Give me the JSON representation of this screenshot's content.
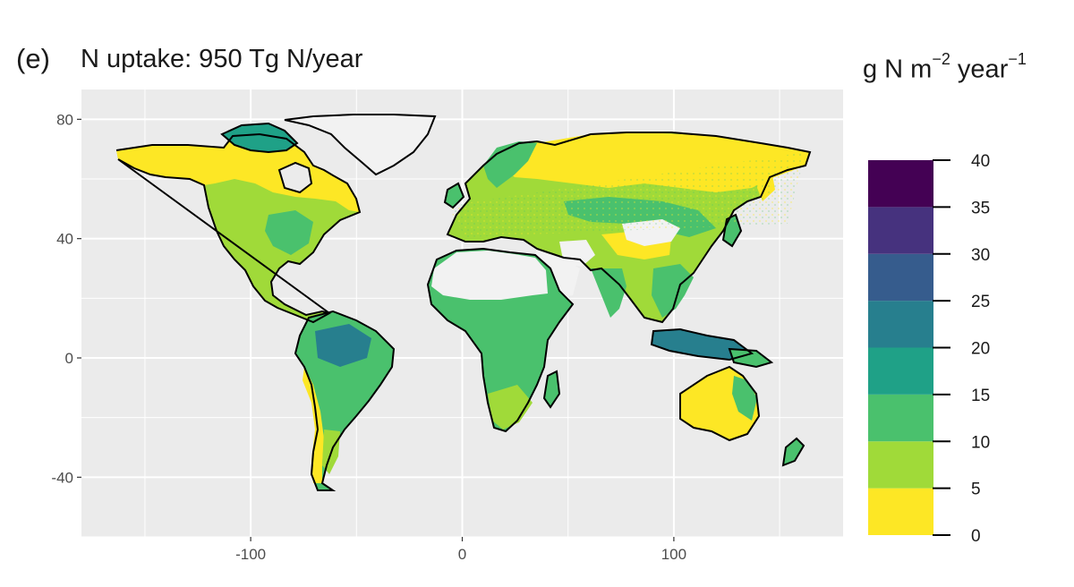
{
  "panel_label": "(e)",
  "title": "N uptake:  950 Tg N/year",
  "unit": {
    "base": "g N m",
    "exp1": "−2",
    "mid": " year",
    "exp2": "−1"
  },
  "chart_data": {
    "type": "heatmap",
    "projection": "longitude-latitude",
    "xlim": [
      -180,
      180
    ],
    "ylim": [
      -60,
      90
    ],
    "x_ticks": [
      -100,
      0,
      100
    ],
    "y_ticks": [
      80,
      40,
      0,
      -40
    ],
    "x_tick_labels": [
      "-100",
      "0",
      "100"
    ],
    "y_tick_labels": [
      "80",
      "40",
      "0",
      "-40"
    ],
    "grid": true,
    "background": "#ebebeb",
    "no_data_color": "#f2f2f2",
    "coast_color": "#000000",
    "legend": {
      "position": "right",
      "breaks": [
        0,
        5,
        10,
        15,
        20,
        25,
        30,
        35,
        40
      ],
      "labels": [
        "0",
        "5",
        "10",
        "15",
        "20",
        "25",
        "30",
        "35",
        "40"
      ],
      "colors": [
        "#fde725",
        "#a0da39",
        "#4ac16d",
        "#1fa187",
        "#277f8e",
        "#365c8d",
        "#46327e",
        "#440154"
      ]
    }
  }
}
